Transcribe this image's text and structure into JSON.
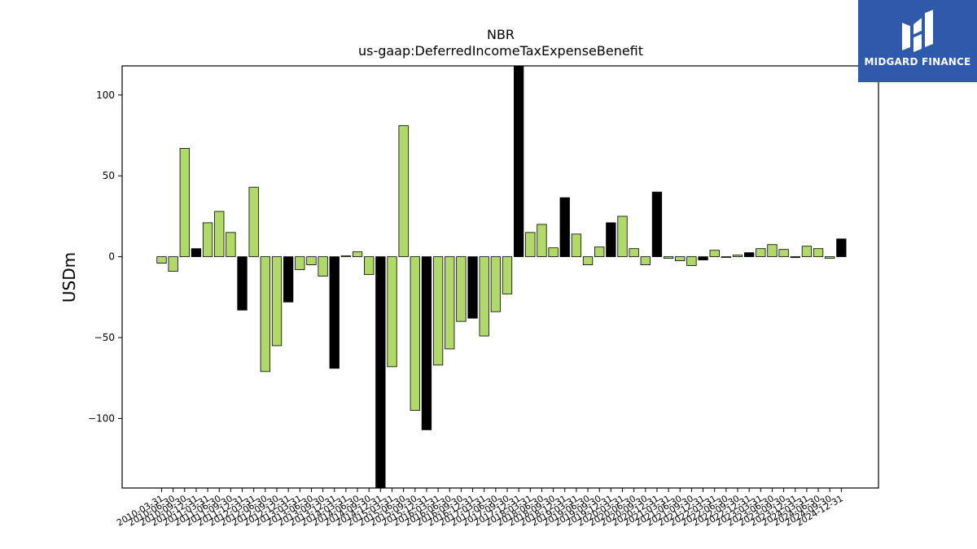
{
  "brand": {
    "name": "MIDGARD FINANCE",
    "logo_color": "#2f59aa"
  },
  "chart_data": {
    "type": "bar",
    "title": "NBR",
    "subtitle": "us-gaap:DeferredIncomeTaxExpenseBenefit",
    "xlabel": "",
    "ylabel": "USDm",
    "ylim": [
      -143,
      118
    ],
    "yticks": [
      -100,
      -50,
      0,
      50,
      100
    ],
    "grid": false,
    "colors": {
      "quarter": "#b0d96a",
      "year_end": "#000000"
    },
    "categories": [
      "2010-03-31",
      "2010-06-30",
      "2010-09-30",
      "2010-12-31",
      "2011-03-31",
      "2011-06-30",
      "2011-09-30",
      "2011-12-31",
      "2012-03-31",
      "2012-06-30",
      "2012-09-30",
      "2012-12-31",
      "2013-03-31",
      "2013-06-30",
      "2013-09-30",
      "2013-12-31",
      "2014-03-31",
      "2014-06-30",
      "2014-09-30",
      "2014-12-31",
      "2015-03-31",
      "2015-06-30",
      "2015-09-30",
      "2015-12-31",
      "2016-03-31",
      "2016-06-30",
      "2016-09-30",
      "2016-12-31",
      "2017-03-31",
      "2017-06-30",
      "2017-09-30",
      "2017-12-31",
      "2018-03-31",
      "2018-06-30",
      "2018-09-30",
      "2018-12-31",
      "2019-03-31",
      "2019-06-30",
      "2019-09-30",
      "2019-12-31",
      "2020-03-31",
      "2020-06-30",
      "2020-09-30",
      "2020-12-31",
      "2021-03-31",
      "2021-06-30",
      "2021-09-30",
      "2021-12-31",
      "2022-03-31",
      "2022-06-30",
      "2022-09-30",
      "2022-12-31",
      "2023-03-31",
      "2023-06-30",
      "2023-09-30",
      "2023-12-31",
      "2024-03-31",
      "2024-06-30",
      "2024-09-30",
      "2024-12-31"
    ],
    "values": [
      -4,
      -9,
      67,
      5,
      21,
      28,
      15,
      -33,
      43,
      -71,
      -55,
      -28,
      -8,
      -5,
      -12,
      -69,
      0.5,
      3,
      -11,
      -145,
      -68,
      81,
      -95,
      -107,
      -67,
      -57,
      -40,
      -38,
      -49,
      -34,
      -23,
      120,
      15,
      20,
      5.5,
      36.5,
      14,
      -5,
      6,
      21,
      25,
      5,
      -5,
      40,
      -1,
      -2.5,
      -5.5,
      -2,
      4,
      -0.5,
      1,
      2.5,
      5,
      7.5,
      4.5,
      -0.5,
      6.5,
      5,
      -1,
      11
    ]
  }
}
